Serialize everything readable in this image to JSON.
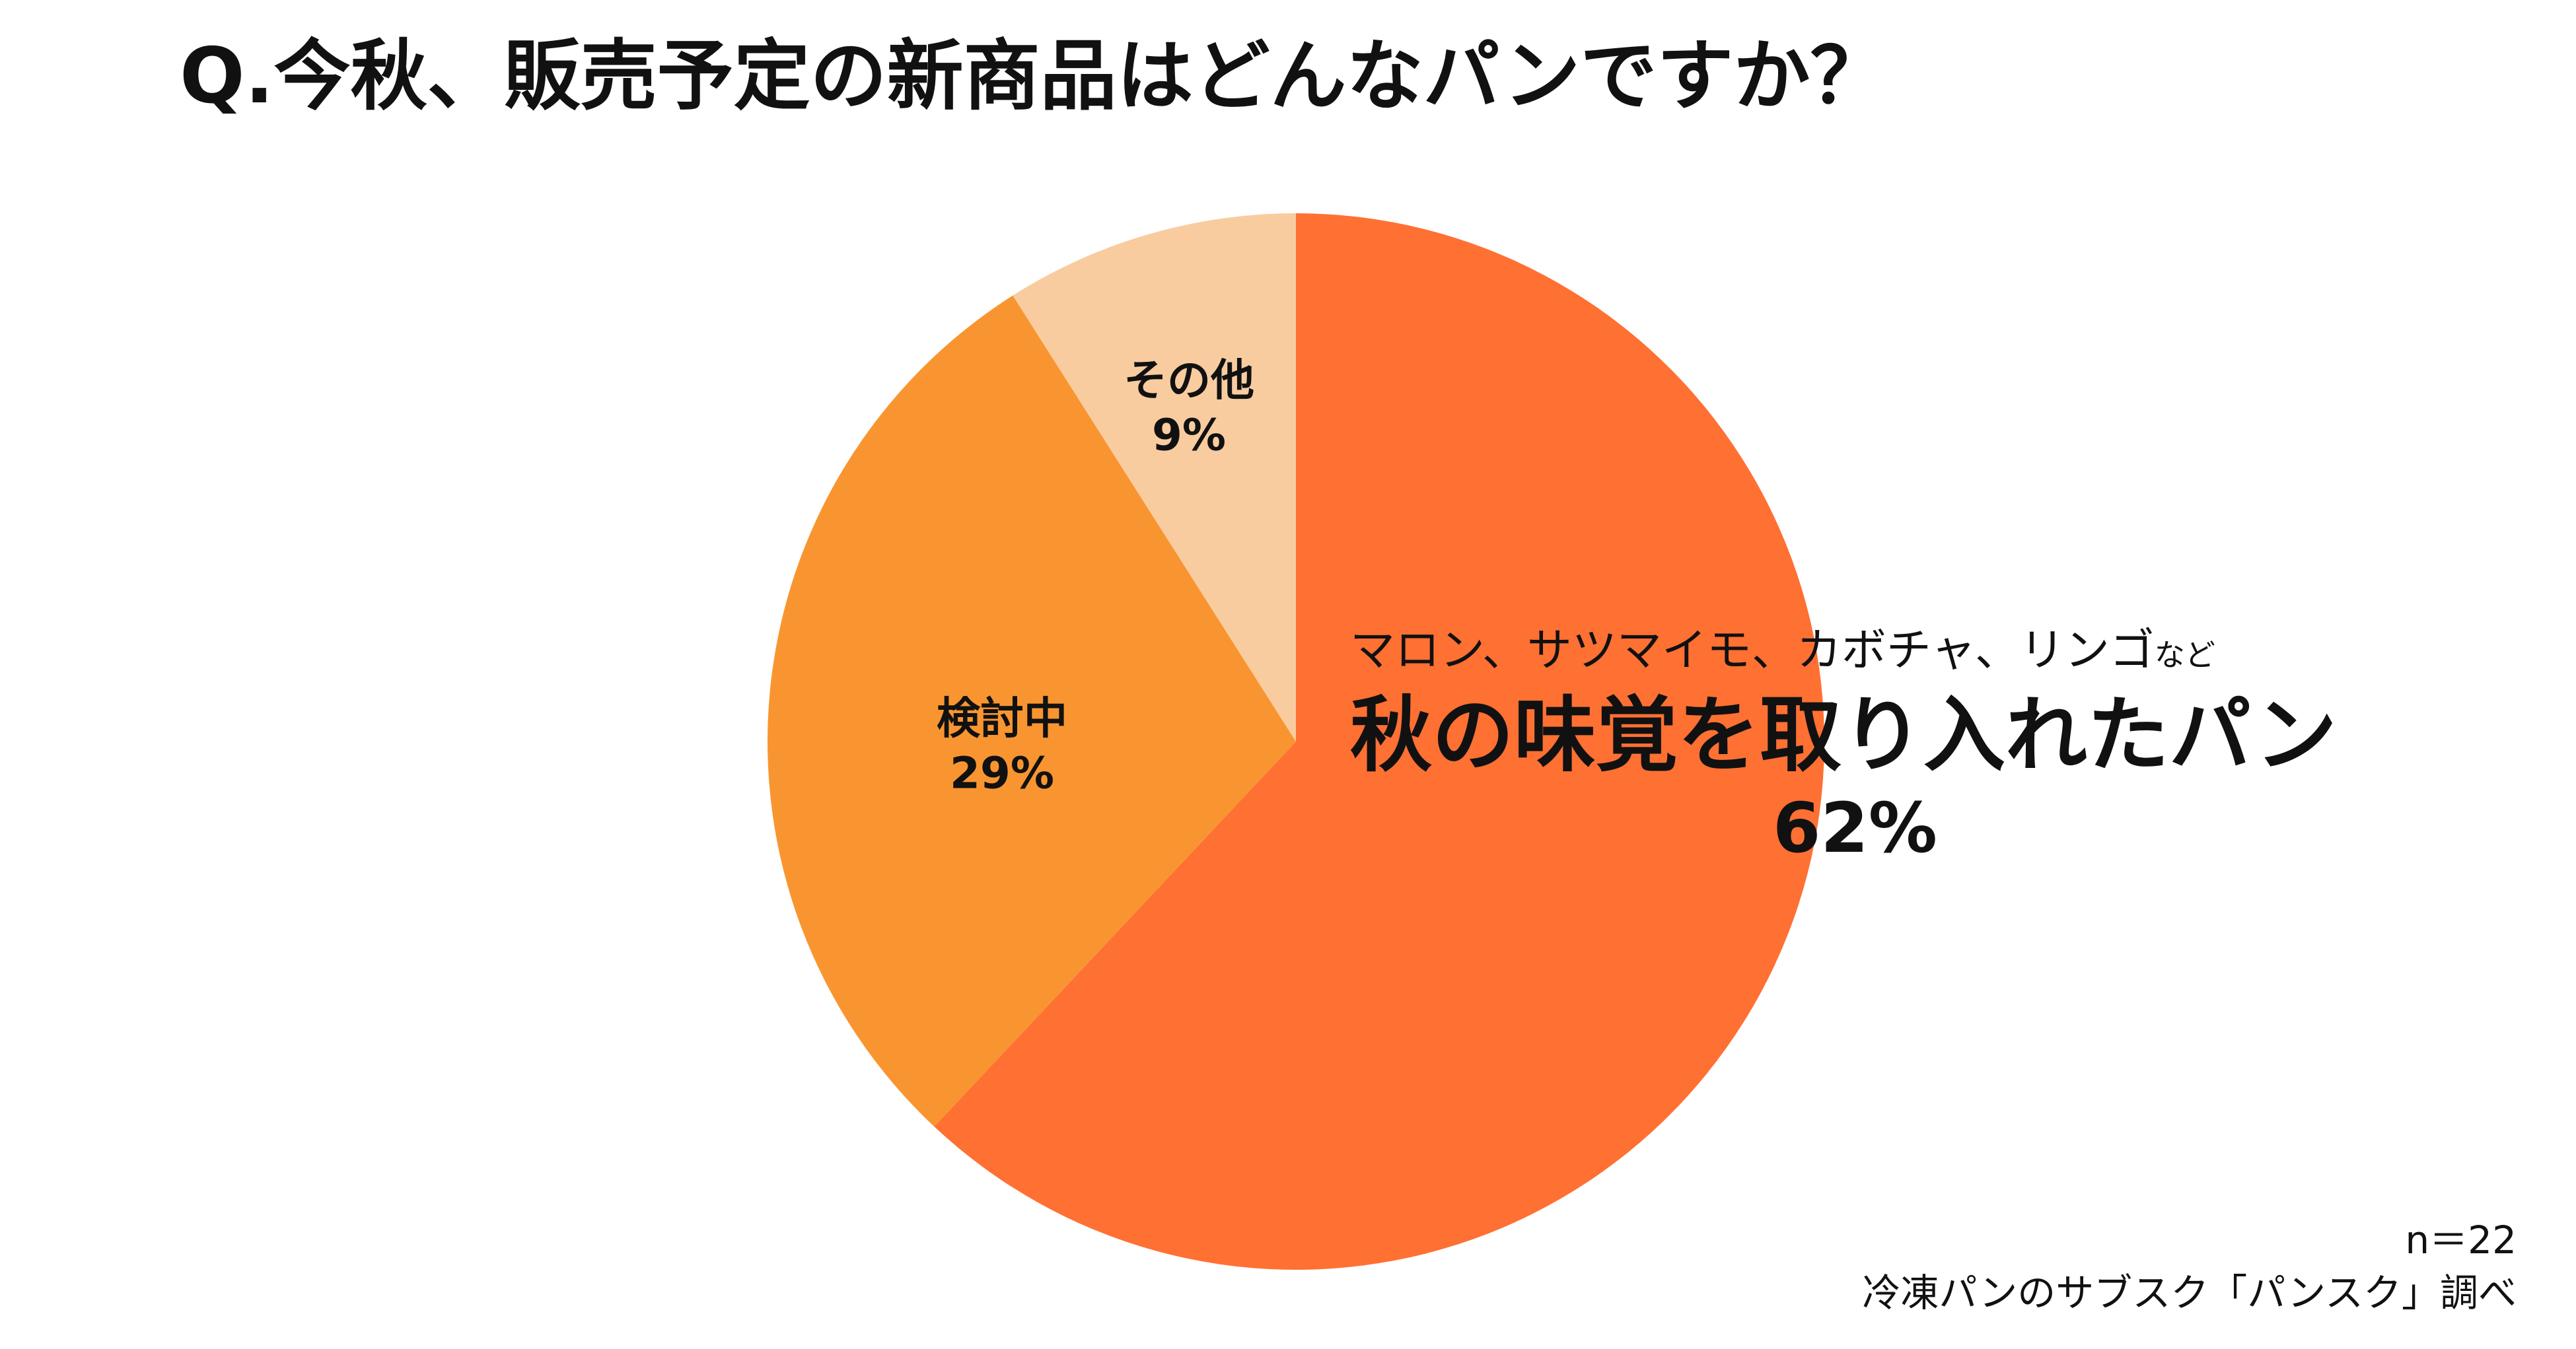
{
  "title": "Q.今秋、販売予定の新商品はどんなパンですか？",
  "chart_data": {
    "type": "pie",
    "title": "Q.今秋、販売予定の新商品はどんなパンですか？",
    "start_angle": "12 o'clock",
    "direction": "clockwise",
    "slices": [
      {
        "name": "秋の味覚を取り入れたパン",
        "examples": "マロン、サツマイモ、カボチャ、リンゴ",
        "examples_suffix": "など",
        "value": 62,
        "value_label": "62%",
        "color": "#FF7033"
      },
      {
        "name": "検討中",
        "value": 29,
        "value_label": "29%",
        "color": "#F99530"
      },
      {
        "name": "その他",
        "value": 9,
        "value_label": "9%",
        "color": "#F8CC9F"
      }
    ]
  },
  "footer": {
    "sample_size": "n＝22",
    "source": "冷凍パンのサブスク「パンスク」調べ"
  }
}
